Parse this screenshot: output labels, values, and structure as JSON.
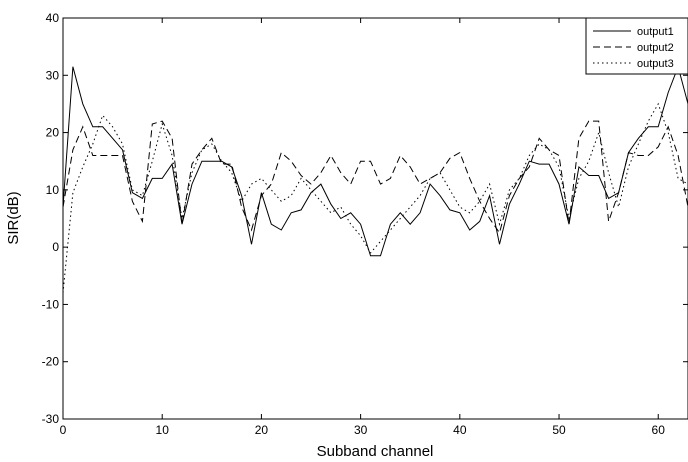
{
  "chart_data": {
    "type": "line",
    "xlabel": "Subband channel",
    "ylabel": "SIR(dB)",
    "xlim": [
      0,
      63
    ],
    "ylim": [
      -30,
      40
    ],
    "x_ticks": [
      0,
      10,
      20,
      30,
      40,
      50,
      60
    ],
    "y_ticks": [
      -30,
      -20,
      -10,
      0,
      10,
      20,
      30,
      40
    ],
    "grid": false,
    "legend_position": "top-right",
    "x": [
      0,
      1,
      2,
      3,
      4,
      5,
      6,
      7,
      8,
      9,
      10,
      11,
      12,
      13,
      14,
      15,
      16,
      17,
      18,
      19,
      20,
      21,
      22,
      23,
      24,
      25,
      26,
      27,
      28,
      29,
      30,
      31,
      32,
      33,
      34,
      35,
      36,
      37,
      38,
      39,
      40,
      41,
      42,
      43,
      44,
      45,
      46,
      47,
      48,
      49,
      50,
      51,
      52,
      53,
      54,
      55,
      56,
      57,
      58,
      59,
      60,
      61,
      62,
      63
    ],
    "series": [
      {
        "name": "output1",
        "style": "solid",
        "color": "#000000",
        "values": [
          7,
          31.5,
          25,
          21,
          21,
          19,
          17,
          9.5,
          8.5,
          12,
          12,
          14.5,
          4,
          11,
          15,
          15,
          15,
          14,
          9,
          0.5,
          9.5,
          4,
          3,
          6,
          6.5,
          9.5,
          11,
          7.5,
          5,
          6,
          4,
          -1.5,
          -1.5,
          4,
          6,
          4,
          6,
          11,
          9,
          6.5,
          6,
          3,
          4.5,
          9,
          0.5,
          7.5,
          11,
          15,
          14.5,
          14.5,
          11,
          4,
          14,
          12.5,
          12.5,
          8.5,
          9.5,
          16.5,
          19,
          21,
          21,
          27,
          31.5,
          25
        ]
      },
      {
        "name": "output2",
        "style": "dashed",
        "color": "#000000",
        "values": [
          7,
          17,
          21,
          16,
          16,
          16,
          16,
          8,
          4.5,
          21.5,
          22,
          19,
          4,
          14.5,
          17,
          19,
          14.5,
          14.5,
          7,
          3,
          9,
          11,
          16.5,
          15,
          12.5,
          11,
          13,
          16,
          13,
          11,
          15,
          15,
          11,
          12,
          16,
          14,
          11,
          12,
          13,
          15.5,
          16.5,
          12,
          8,
          5,
          2.5,
          9,
          12,
          14,
          19,
          17,
          16,
          4,
          19,
          22,
          22,
          4.5,
          9.5,
          16.5,
          16,
          16,
          17.5,
          21,
          16,
          7
        ]
      },
      {
        "name": "output3",
        "style": "dotted",
        "color": "#000000",
        "values": [
          -8,
          9.5,
          14,
          18,
          23,
          21,
          18,
          10,
          9,
          15,
          21.5,
          16,
          5,
          13,
          17,
          18,
          15,
          13,
          8,
          11,
          12,
          10,
          8,
          9,
          12,
          10,
          8,
          6,
          7,
          4,
          2,
          -1,
          1,
          3,
          5,
          7,
          9,
          12,
          13,
          10,
          7,
          6,
          8,
          11,
          4,
          10,
          12,
          16,
          18,
          17,
          14,
          5,
          12,
          15,
          20,
          13,
          7,
          14,
          18,
          22,
          25,
          20,
          12,
          11
        ]
      }
    ]
  }
}
